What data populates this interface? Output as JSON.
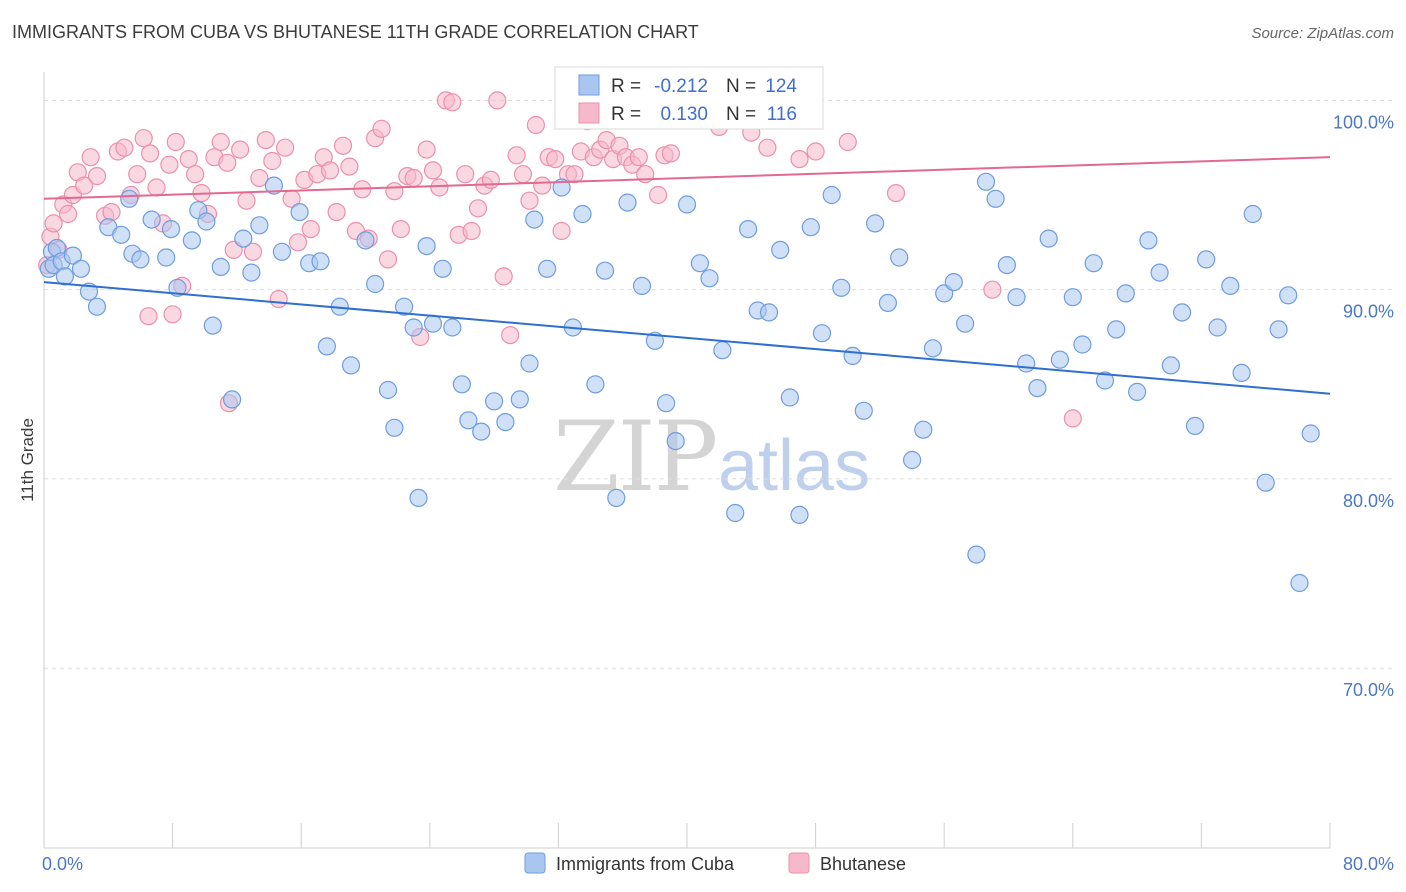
{
  "title": "IMMIGRANTS FROM CUBA VS BHUTANESE 11TH GRADE CORRELATION CHART",
  "source": "Source: ZipAtlas.com",
  "watermark": {
    "zip": "ZIP",
    "atlas": "atlas"
  },
  "colors": {
    "cuba_fill": "#a9c6f0",
    "cuba_stroke": "#6e9de0",
    "cuba_line": "#2f6fd0",
    "bhutan_fill": "#f6b8cb",
    "bhutan_stroke": "#ec8fae",
    "bhutan_line": "#e2698f",
    "grid": "#dddddd",
    "tick_text": "#4a78c8"
  },
  "legend_box": {
    "rows": [
      {
        "r_label": "R =",
        "r_value": "-0.212",
        "n_label": "N =",
        "n_value": "124"
      },
      {
        "r_label": "R =",
        "r_value": "0.130",
        "n_label": "N =",
        "n_value": "116"
      }
    ]
  },
  "bottom_legend": [
    {
      "label": "Immigrants from Cuba"
    },
    {
      "label": "Bhutanese"
    }
  ],
  "chart_data": {
    "type": "scatter",
    "title": "IMMIGRANTS FROM CUBA VS BHUTANESE 11TH GRADE CORRELATION CHART",
    "xlabel": "",
    "ylabel": "11th Grade",
    "xlim": [
      0,
      80
    ],
    "ylim": [
      60.5,
      101.5
    ],
    "x_tick_labels": [
      "0.0%",
      "80.0%"
    ],
    "y_ticks": [
      70,
      80,
      90,
      100
    ],
    "y_tick_labels": [
      "70.0%",
      "80.0%",
      "90.0%",
      "100.0%"
    ],
    "grid": true,
    "legend_position": "bottom",
    "series": [
      {
        "name": "Immigrants from Cuba",
        "r": -0.212,
        "n": 124,
        "trend": {
          "x": [
            0,
            80
          ],
          "y": [
            90.4,
            84.5
          ]
        },
        "points": [
          [
            0.3,
            91.1
          ],
          [
            0.5,
            92.0
          ],
          [
            0.6,
            91.3
          ],
          [
            0.8,
            92.2
          ],
          [
            1.1,
            91.5
          ],
          [
            1.3,
            90.7
          ],
          [
            1.8,
            91.8
          ],
          [
            2.3,
            91.1
          ],
          [
            2.8,
            89.9
          ],
          [
            3.3,
            89.1
          ],
          [
            4.0,
            93.3
          ],
          [
            4.8,
            92.9
          ],
          [
            5.3,
            94.8
          ],
          [
            5.5,
            91.9
          ],
          [
            6.0,
            91.6
          ],
          [
            6.7,
            93.7
          ],
          [
            7.6,
            91.7
          ],
          [
            7.9,
            93.2
          ],
          [
            8.3,
            90.1
          ],
          [
            9.2,
            92.6
          ],
          [
            9.6,
            94.2
          ],
          [
            10.1,
            93.6
          ],
          [
            10.5,
            88.1
          ],
          [
            11.0,
            91.2
          ],
          [
            11.7,
            84.2
          ],
          [
            12.4,
            92.7
          ],
          [
            12.9,
            90.9
          ],
          [
            13.4,
            93.4
          ],
          [
            14.3,
            95.5
          ],
          [
            14.8,
            92.0
          ],
          [
            15.9,
            94.1
          ],
          [
            16.5,
            91.4
          ],
          [
            17.2,
            91.5
          ],
          [
            17.6,
            87.0
          ],
          [
            18.4,
            89.1
          ],
          [
            19.1,
            86.0
          ],
          [
            20.0,
            92.6
          ],
          [
            20.6,
            90.3
          ],
          [
            21.4,
            84.7
          ],
          [
            21.8,
            82.7
          ],
          [
            22.4,
            89.1
          ],
          [
            23.0,
            88.0
          ],
          [
            23.3,
            79.0
          ],
          [
            23.8,
            92.3
          ],
          [
            24.2,
            88.2
          ],
          [
            24.8,
            91.1
          ],
          [
            25.4,
            88.0
          ],
          [
            26.0,
            85.0
          ],
          [
            26.4,
            83.1
          ],
          [
            27.2,
            82.5
          ],
          [
            28.0,
            84.1
          ],
          [
            28.7,
            83.0
          ],
          [
            29.6,
            84.2
          ],
          [
            30.2,
            86.1
          ],
          [
            30.5,
            93.7
          ],
          [
            31.3,
            91.1
          ],
          [
            32.2,
            95.4
          ],
          [
            32.9,
            88.0
          ],
          [
            33.5,
            94.0
          ],
          [
            34.3,
            85.0
          ],
          [
            34.9,
            91.0
          ],
          [
            35.6,
            79.0
          ],
          [
            36.3,
            94.6
          ],
          [
            37.2,
            90.2
          ],
          [
            38.0,
            87.3
          ],
          [
            38.7,
            84.0
          ],
          [
            39.3,
            82.0
          ],
          [
            40.0,
            94.5
          ],
          [
            40.8,
            91.4
          ],
          [
            41.4,
            90.6
          ],
          [
            42.2,
            86.8
          ],
          [
            43.0,
            78.2
          ],
          [
            43.8,
            93.2
          ],
          [
            44.4,
            88.9
          ],
          [
            45.1,
            88.8
          ],
          [
            45.8,
            92.1
          ],
          [
            46.4,
            84.3
          ],
          [
            47.0,
            78.1
          ],
          [
            47.7,
            93.3
          ],
          [
            48.4,
            87.7
          ],
          [
            49.0,
            95.0
          ],
          [
            49.6,
            90.1
          ],
          [
            50.3,
            86.5
          ],
          [
            51.0,
            83.6
          ],
          [
            51.7,
            93.5
          ],
          [
            52.5,
            89.3
          ],
          [
            53.2,
            91.7
          ],
          [
            54.0,
            81.0
          ],
          [
            54.7,
            82.6
          ],
          [
            55.3,
            86.9
          ],
          [
            56.0,
            89.8
          ],
          [
            56.6,
            90.4
          ],
          [
            57.3,
            88.2
          ],
          [
            58.0,
            76.0
          ],
          [
            58.6,
            95.7
          ],
          [
            59.2,
            94.8
          ],
          [
            59.9,
            91.3
          ],
          [
            60.5,
            89.6
          ],
          [
            61.1,
            86.1
          ],
          [
            61.8,
            84.8
          ],
          [
            62.5,
            92.7
          ],
          [
            63.2,
            86.3
          ],
          [
            64.0,
            89.6
          ],
          [
            64.6,
            87.1
          ],
          [
            65.3,
            91.4
          ],
          [
            66.0,
            85.2
          ],
          [
            66.7,
            87.9
          ],
          [
            67.3,
            89.8
          ],
          [
            68.0,
            84.6
          ],
          [
            68.7,
            92.6
          ],
          [
            69.4,
            90.9
          ],
          [
            70.1,
            86.0
          ],
          [
            70.8,
            88.8
          ],
          [
            71.6,
            82.8
          ],
          [
            72.3,
            91.6
          ],
          [
            73.0,
            88.0
          ],
          [
            73.8,
            90.2
          ],
          [
            74.5,
            85.6
          ],
          [
            75.2,
            94.0
          ],
          [
            76.0,
            79.8
          ],
          [
            76.8,
            87.9
          ],
          [
            77.4,
            89.7
          ],
          [
            78.1,
            74.5
          ],
          [
            78.8,
            82.4
          ]
        ]
      },
      {
        "name": "Bhutanese",
        "r": 0.13,
        "n": 116,
        "trend": {
          "x": [
            0,
            80
          ],
          "y": [
            94.8,
            97.0
          ]
        },
        "points": [
          [
            0.2,
            91.3
          ],
          [
            0.4,
            92.8
          ],
          [
            0.6,
            93.5
          ],
          [
            0.9,
            92.1
          ],
          [
            1.2,
            94.5
          ],
          [
            1.5,
            94.0
          ],
          [
            1.8,
            95.0
          ],
          [
            2.1,
            96.2
          ],
          [
            2.5,
            95.5
          ],
          [
            2.9,
            97.0
          ],
          [
            3.3,
            96.0
          ],
          [
            3.8,
            93.9
          ],
          [
            4.2,
            94.1
          ],
          [
            4.6,
            97.3
          ],
          [
            5.0,
            97.5
          ],
          [
            5.4,
            95.0
          ],
          [
            5.8,
            96.1
          ],
          [
            6.2,
            98.0
          ],
          [
            6.6,
            97.2
          ],
          [
            7.0,
            95.4
          ],
          [
            7.4,
            93.5
          ],
          [
            7.8,
            96.6
          ],
          [
            8.2,
            97.8
          ],
          [
            8.6,
            90.2
          ],
          [
            9.0,
            96.9
          ],
          [
            9.4,
            96.1
          ],
          [
            9.8,
            95.1
          ],
          [
            10.2,
            94.0
          ],
          [
            10.6,
            97.0
          ],
          [
            11.0,
            97.8
          ],
          [
            11.4,
            96.7
          ],
          [
            11.8,
            92.1
          ],
          [
            12.2,
            97.4
          ],
          [
            12.6,
            94.7
          ],
          [
            13.0,
            92.0
          ],
          [
            13.4,
            95.9
          ],
          [
            13.8,
            97.9
          ],
          [
            14.2,
            96.8
          ],
          [
            14.6,
            89.5
          ],
          [
            15.0,
            97.5
          ],
          [
            15.4,
            94.8
          ],
          [
            15.8,
            92.5
          ],
          [
            16.2,
            95.8
          ],
          [
            16.6,
            93.2
          ],
          [
            17.0,
            96.1
          ],
          [
            17.4,
            97.0
          ],
          [
            17.8,
            96.3
          ],
          [
            18.2,
            94.1
          ],
          [
            18.6,
            97.6
          ],
          [
            19.0,
            96.5
          ],
          [
            19.4,
            93.1
          ],
          [
            19.8,
            95.3
          ],
          [
            20.2,
            92.7
          ],
          [
            20.6,
            98.0
          ],
          [
            21.0,
            98.5
          ],
          [
            21.4,
            91.6
          ],
          [
            21.8,
            95.2
          ],
          [
            22.2,
            93.2
          ],
          [
            22.6,
            96.0
          ],
          [
            23.0,
            95.9
          ],
          [
            23.4,
            87.5
          ],
          [
            23.8,
            97.4
          ],
          [
            24.2,
            96.3
          ],
          [
            24.6,
            95.4
          ],
          [
            25.0,
            100.0
          ],
          [
            25.4,
            99.9
          ],
          [
            25.8,
            92.9
          ],
          [
            26.2,
            96.1
          ],
          [
            26.6,
            93.1
          ],
          [
            27.0,
            94.3
          ],
          [
            27.4,
            95.5
          ],
          [
            27.8,
            95.8
          ],
          [
            28.2,
            100.0
          ],
          [
            28.6,
            90.7
          ],
          [
            29.0,
            87.6
          ],
          [
            29.4,
            97.1
          ],
          [
            29.8,
            96.1
          ],
          [
            30.2,
            94.7
          ],
          [
            30.6,
            98.7
          ],
          [
            31.0,
            95.5
          ],
          [
            31.4,
            97.0
          ],
          [
            31.8,
            96.9
          ],
          [
            32.2,
            93.1
          ],
          [
            32.6,
            96.1
          ],
          [
            33.0,
            96.1
          ],
          [
            33.4,
            97.3
          ],
          [
            33.8,
            98.9
          ],
          [
            34.2,
            97.0
          ],
          [
            34.6,
            97.4
          ],
          [
            35.0,
            97.9
          ],
          [
            35.4,
            96.9
          ],
          [
            35.8,
            97.6
          ],
          [
            36.2,
            97.0
          ],
          [
            36.6,
            96.6
          ],
          [
            37.0,
            97.0
          ],
          [
            37.4,
            96.1
          ],
          [
            37.8,
            99.5
          ],
          [
            38.2,
            95.0
          ],
          [
            38.6,
            97.1
          ],
          [
            39.0,
            97.2
          ],
          [
            40.0,
            99.8
          ],
          [
            41.0,
            99.9
          ],
          [
            42.0,
            98.6
          ],
          [
            43.0,
            99.3
          ],
          [
            44.0,
            98.3
          ],
          [
            45.0,
            97.5
          ],
          [
            46.0,
            99.1
          ],
          [
            47.0,
            96.9
          ],
          [
            48.0,
            97.3
          ],
          [
            50.0,
            97.8
          ],
          [
            53.0,
            95.1
          ],
          [
            59.0,
            90.0
          ],
          [
            64.0,
            83.2
          ],
          [
            11.5,
            84.0
          ],
          [
            8.0,
            88.7
          ],
          [
            6.5,
            88.6
          ]
        ]
      }
    ]
  }
}
